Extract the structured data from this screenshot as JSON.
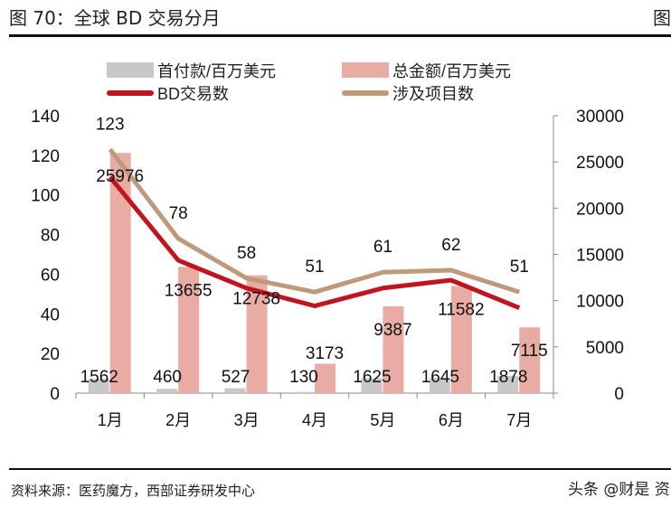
{
  "header": {
    "title": "图 70：全球 BD 交易分月",
    "title_cut": "图"
  },
  "footer": {
    "source": "资料来源：医药魔方，西部证券研发中心",
    "watermark": "头条 @财是 资"
  },
  "chart_data": {
    "type": "bar+line",
    "categories": [
      "1月",
      "2月",
      "3月",
      "4月",
      "5月",
      "6月",
      "7月"
    ],
    "left_axis": {
      "ylim": [
        0,
        140
      ],
      "ticks": [
        0,
        20,
        40,
        60,
        80,
        100,
        120,
        140
      ]
    },
    "right_axis": {
      "ylim": [
        0,
        30000
      ],
      "ticks": [
        0,
        5000,
        10000,
        15000,
        20000,
        25000,
        30000
      ]
    },
    "legend_position": "top",
    "grid": false,
    "series": [
      {
        "name": "首付款/百万美元",
        "type": "bar",
        "axis": "right",
        "color": "#c8c8c8",
        "values": [
          1562,
          460,
          527,
          130,
          1625,
          1645,
          1878
        ]
      },
      {
        "name": "总金额/百万美元",
        "type": "bar",
        "axis": "right",
        "color": "#e8aca4",
        "values": [
          25976,
          13655,
          12738,
          3173,
          9387,
          11582,
          7115
        ]
      },
      {
        "name": "BD交易数",
        "type": "line",
        "axis": "left",
        "color": "#c0141e",
        "values": [
          109,
          67,
          53,
          44,
          53,
          57,
          43
        ]
      },
      {
        "name": "涉及项目数",
        "type": "line",
        "axis": "left",
        "color": "#bf9a7a",
        "values": [
          123,
          78,
          58,
          51,
          61,
          62,
          51
        ]
      }
    ]
  }
}
